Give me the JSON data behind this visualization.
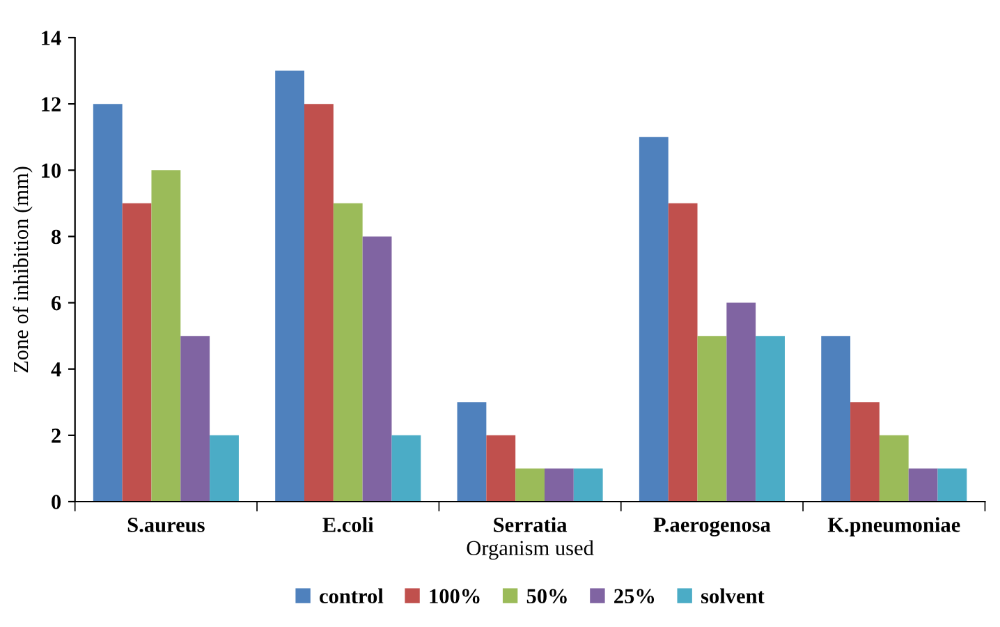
{
  "chart_data": {
    "type": "bar",
    "xlabel": "Organism used",
    "ylabel": "Zone of inhibition (mm)",
    "categories": [
      "S.aureus",
      "E.coli",
      "Serratia",
      "P.aerogenosa",
      "K.pneumoniae"
    ],
    "series": [
      {
        "name": "control",
        "color": "#4f81bd",
        "values": [
          12,
          13,
          3,
          11,
          5
        ]
      },
      {
        "name": "100%",
        "color": "#c0504d",
        "values": [
          9,
          12,
          2,
          9,
          3
        ]
      },
      {
        "name": "50%",
        "color": "#9bbb59",
        "values": [
          10,
          9,
          1,
          5,
          2
        ]
      },
      {
        "name": "25%",
        "color": "#8064a2",
        "values": [
          5,
          8,
          1,
          6,
          1
        ]
      },
      {
        "name": "solvent",
        "color": "#4bacc6",
        "values": [
          2,
          2,
          1,
          5,
          1
        ]
      }
    ],
    "ylim": [
      0,
      14
    ],
    "yticks": [
      0,
      2,
      4,
      6,
      8,
      10,
      12,
      14
    ],
    "grid": false,
    "legend": "bottom"
  }
}
